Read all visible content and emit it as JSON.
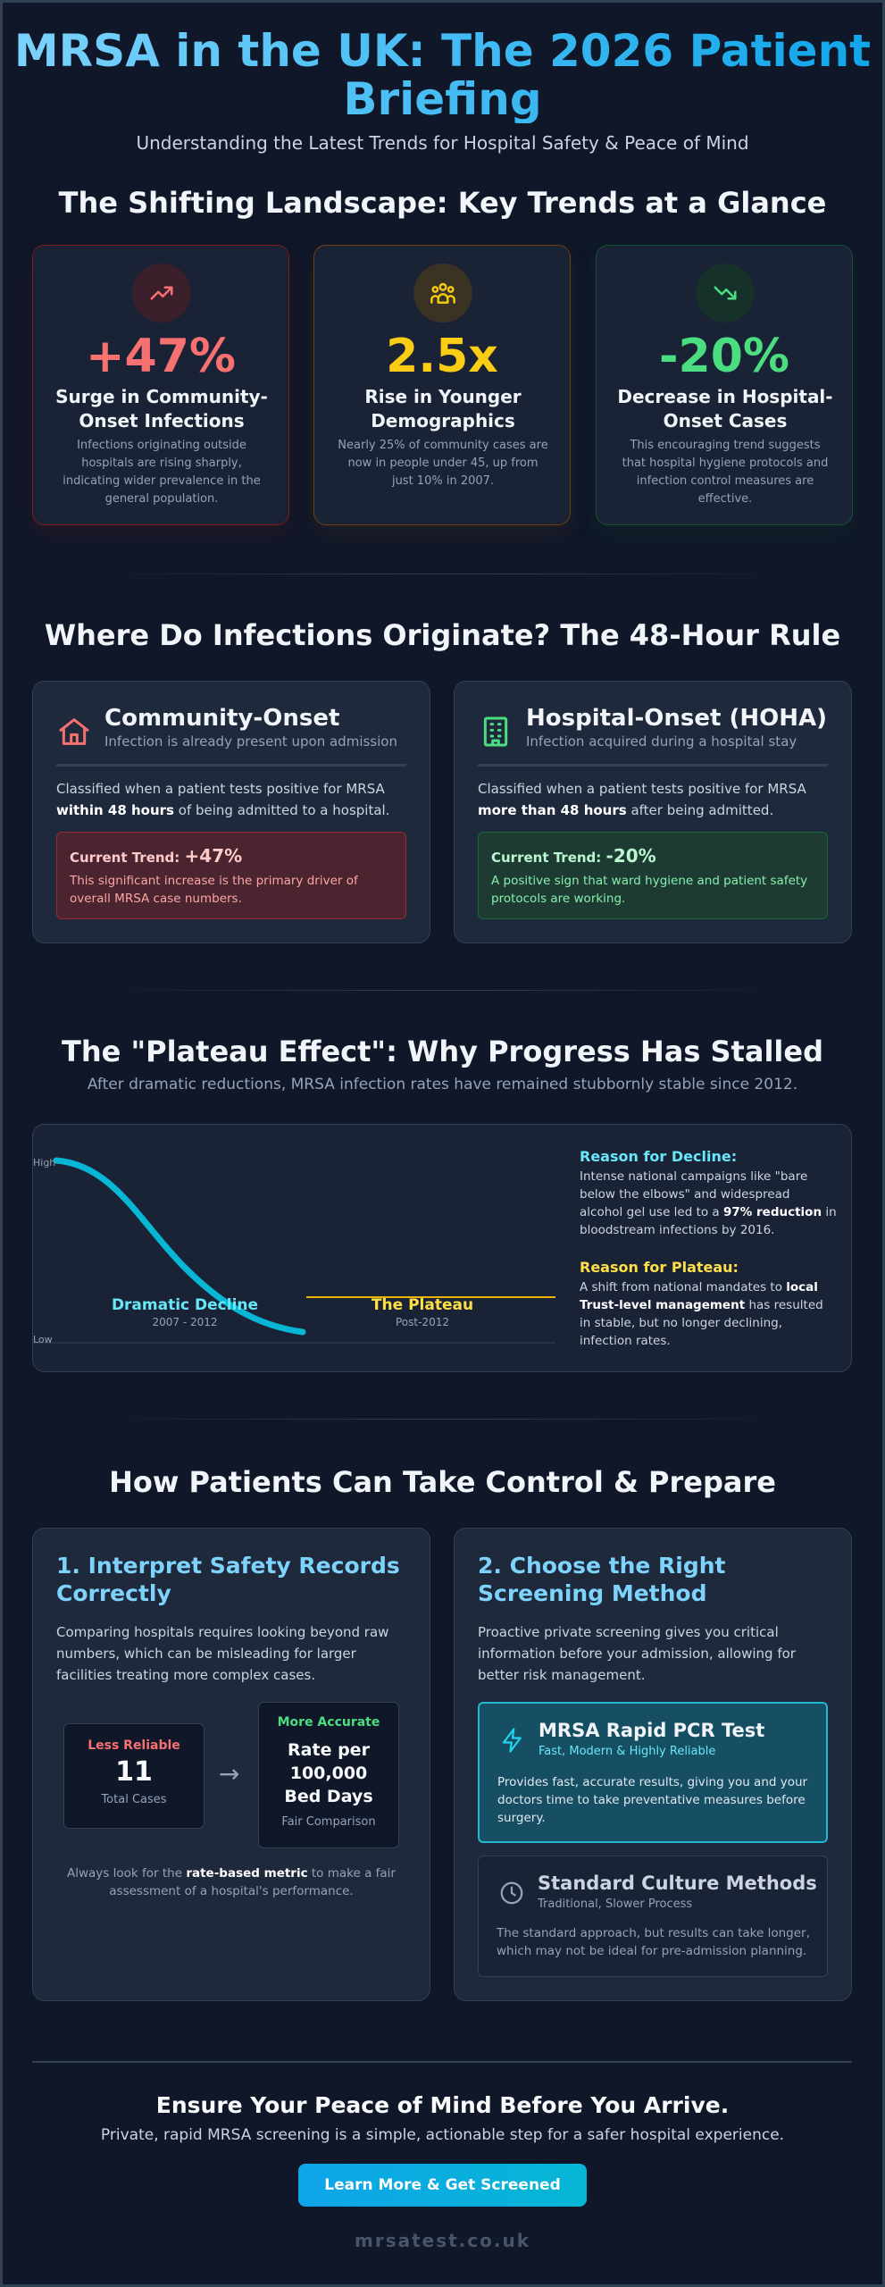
{
  "header": {
    "title": "MRSA in the UK: The 2026 Patient Briefing",
    "subtitle": "Understanding the Latest Trends for Hospital Safety & Peace of Mind"
  },
  "trends": {
    "heading": "The Shifting Landscape: Key Trends at a Glance",
    "cards": [
      {
        "value": "+47%",
        "label": "Surge in Community-Onset Infections",
        "description": "Infections originating outside hospitals are rising sharply, indicating wider prevalence in the general population.",
        "icon": "trending-up-icon",
        "color": "#f87171"
      },
      {
        "value": "2.5x",
        "label": "Rise in Younger Demographics",
        "description": "Nearly 25% of community cases are now in people under 45, up from just 10% in 2007.",
        "icon": "people-icon",
        "color": "#facc15"
      },
      {
        "value": "-20%",
        "label": "Decrease in Hospital-Onset Cases",
        "description": "This encouraging trend suggests that hospital hygiene protocols and infection control measures are effective.",
        "icon": "trending-down-icon",
        "color": "#4ade80"
      }
    ]
  },
  "origin": {
    "heading": "Where Do Infections Originate? The 48-Hour Rule",
    "community": {
      "title": "Community-Onset",
      "subtitle": "Infection is already present upon admission",
      "body_pre": "Classified when a patient tests positive for MRSA",
      "body_bold": "within 48 hours",
      "body_post": "of being admitted to a hospital.",
      "trend_label": "Current Trend:",
      "trend_value": "+47%",
      "trend_desc": "This significant increase is the primary driver of overall MRSA case numbers.",
      "icon": "home-icon"
    },
    "hospital": {
      "title": "Hospital-Onset (HOHA)",
      "subtitle": "Infection acquired during a hospital stay",
      "body_pre": "Classified when a patient tests positive for MRSA",
      "body_bold": "more than 48 hours",
      "body_post": "after being admitted.",
      "trend_label": "Current Trend:",
      "trend_value": "-20%",
      "trend_desc": "A positive sign that ward hygiene and patient safety protocols are working.",
      "icon": "hospital-building-icon"
    }
  },
  "plateau": {
    "heading": "The \"Plateau Effect\": Why Progress Has Stalled",
    "subheading": "After dramatic reductions, MRSA infection rates have remained stubbornly stable since 2012.",
    "y_high": "High",
    "y_low": "Low",
    "decline_label": "Dramatic Decline",
    "decline_years": "2007 - 2012",
    "plateau_label": "The Plateau",
    "plateau_years": "Post-2012",
    "reason_decline_title": "Reason for Decline:",
    "reason_decline_pre": "Intense national campaigns like \"bare below the elbows\" and widespread alcohol gel use led to a",
    "reason_decline_bold": "97% reduction",
    "reason_decline_post": "in bloodstream infections by 2016.",
    "reason_plateau_title": "Reason for Plateau:",
    "reason_plateau_pre": "A shift from national mandates to",
    "reason_plateau_bold": "local Trust-level management",
    "reason_plateau_post": "has resulted in stable, but no longer declining, infection rates."
  },
  "prepare": {
    "heading": "How Patients Can Take Control & Prepare",
    "records": {
      "title": "1. Interpret Safety Records Correctly",
      "body": "Comparing hospitals requires looking beyond raw numbers, which can be misleading for larger facilities treating more complex cases.",
      "less_label": "Less Reliable",
      "less_value": "11",
      "less_sub": "Total Cases",
      "arrow": "→",
      "more_label": "More Accurate",
      "more_value": "Rate per 100,000 Bed Days",
      "more_sub": "Fair Comparison",
      "note_pre": "Always look for the",
      "note_bold": "rate-based metric",
      "note_post": "to make a fair assessment of a hospital's performance."
    },
    "screening": {
      "title": "2. Choose the Right Screening Method",
      "body": "Proactive private screening gives you critical information before your admission, allowing for better risk management.",
      "pcr_title": "MRSA Rapid PCR Test",
      "pcr_sub": "Fast, Modern & Highly Reliable",
      "pcr_desc": "Provides fast, accurate results, giving you and your doctors time to take preventative measures before surgery.",
      "culture_title": "Standard Culture Methods",
      "culture_sub": "Traditional, Slower Process",
      "culture_desc": "The standard approach, but results can take longer, which may not be ideal for pre-admission planning."
    }
  },
  "cta": {
    "heading": "Ensure Your Peace of Mind Before You Arrive.",
    "subheading": "Private, rapid MRSA screening is a simple, actionable step for a safer hospital experience.",
    "button": "Learn More & Get Screened",
    "site": "mrsatest.co.uk"
  }
}
